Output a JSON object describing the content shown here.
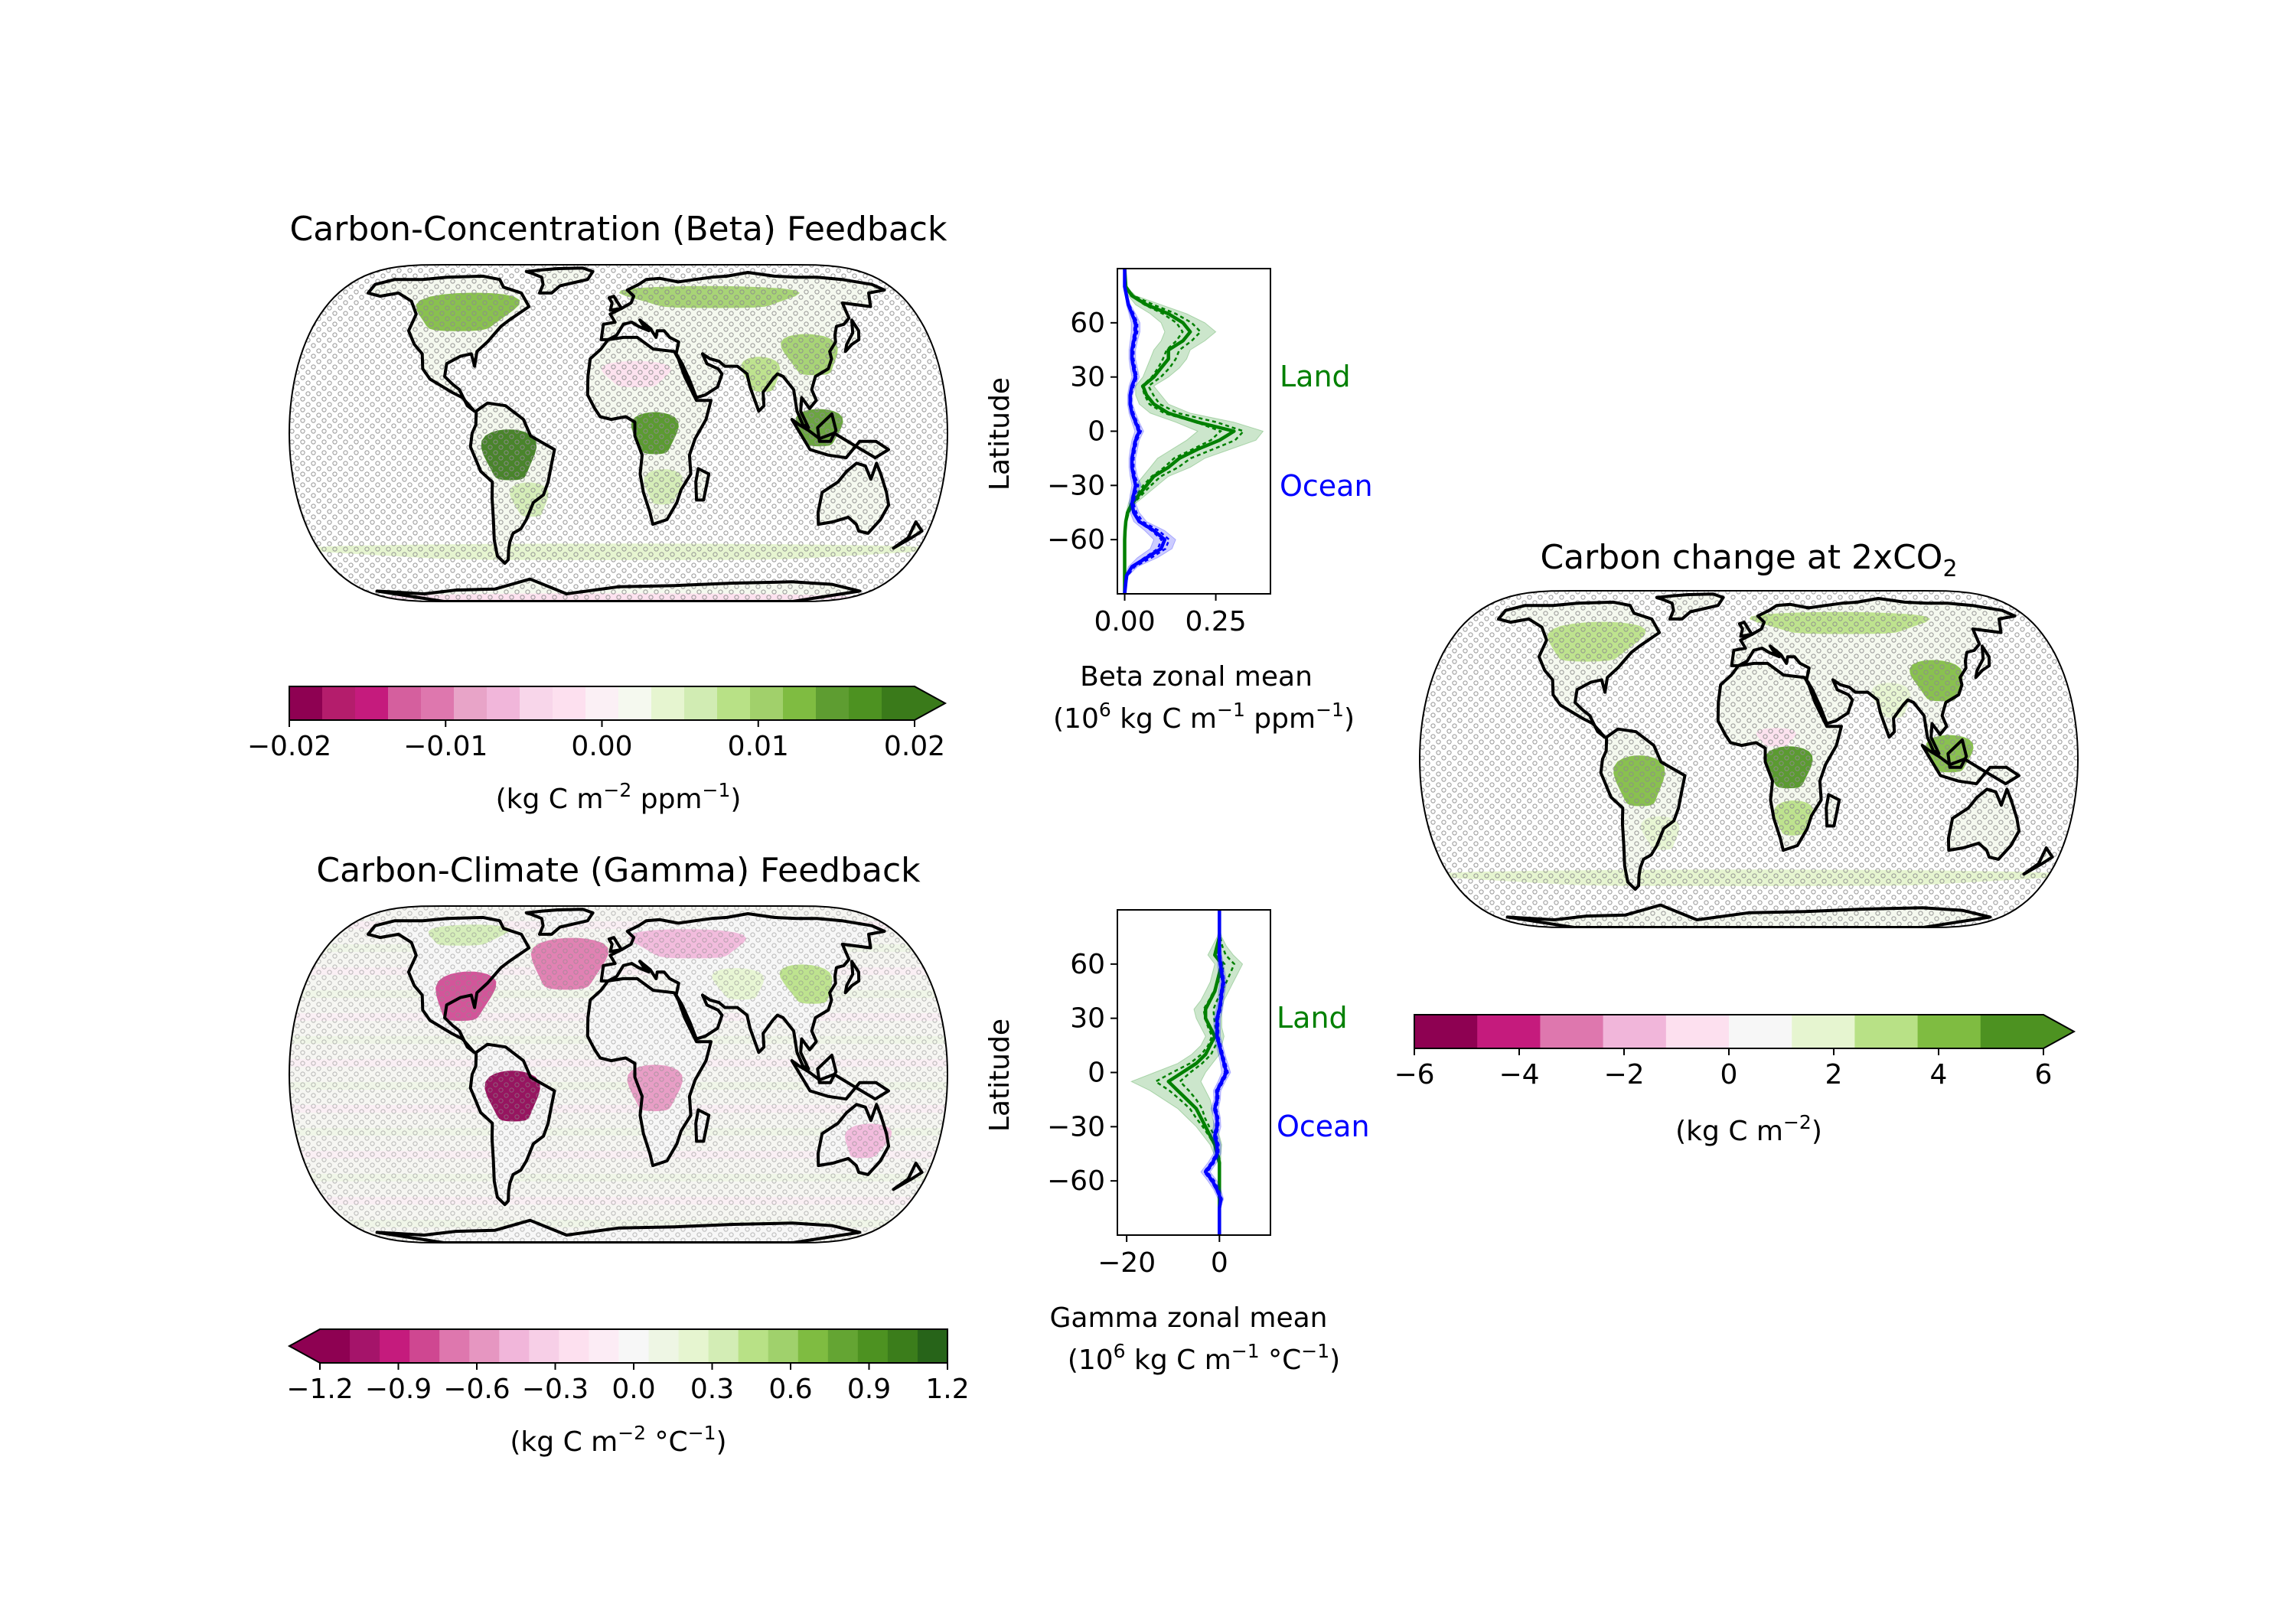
{
  "colors": {
    "land": "#008000",
    "ocean": "#0000ff",
    "stipple": "#8c8c8c",
    "cbar_beta": [
      "#8e0152",
      "#b41d6c",
      "#c51b7d",
      "#d55f9e",
      "#de77ae",
      "#e8a4c8",
      "#f1b6da",
      "#f8d6ea",
      "#fde0ef",
      "#fbf0f5",
      "#f5f9ef",
      "#e6f5d0",
      "#d1ecb3",
      "#b8e186",
      "#a1d06b",
      "#7fbc41",
      "#5e9d31",
      "#4d9221",
      "#3a7a1a"
    ],
    "cbar_gamma": [
      "#8e0152",
      "#a5146a",
      "#c51b7d",
      "#cf4791",
      "#de77ae",
      "#e696c1",
      "#f1b6da",
      "#f7cfe7",
      "#fde0ef",
      "#fcecf5",
      "#f7f7f7",
      "#eef6e4",
      "#e6f5d0",
      "#d3edb5",
      "#b8e186",
      "#a0d16c",
      "#7fbc41",
      "#64a533",
      "#4d9221",
      "#3b7d1b",
      "#276419"
    ],
    "cbar_carbon": [
      "#8e0152",
      "#c51b7d",
      "#de77ae",
      "#f1b6da",
      "#fde0ef",
      "#f7f7f7",
      "#e6f5d0",
      "#b8e186",
      "#7fbc41",
      "#4d9221"
    ]
  },
  "maps": [
    {
      "id": "beta",
      "title": "Carbon-Concentration (Beta) Feedback",
      "mode": "beta"
    },
    {
      "id": "gamma",
      "title": "Carbon-Climate (Gamma) Feedback",
      "mode": "gamma"
    },
    {
      "id": "carbon",
      "title": "Carbon change at 2xCO",
      "title_sub": "2",
      "mode": "carbon"
    }
  ],
  "colorbars": [
    {
      "id": "beta",
      "ticks": [
        "−0.02",
        "−0.01",
        "0.00",
        "0.01",
        "0.02"
      ],
      "extend": "max",
      "label_parts": [
        "(kg C m",
        "−2",
        " ppm",
        "−1",
        ")"
      ]
    },
    {
      "id": "gamma",
      "ticks": [
        "−1.2",
        "−0.9",
        "−0.6",
        "−0.3",
        "0.0",
        "0.3",
        "0.6",
        "0.9",
        "1.2"
      ],
      "extend": "min",
      "label_parts": [
        "(kg C m",
        "−2",
        " °C",
        "−1",
        ")"
      ]
    },
    {
      "id": "carbon",
      "ticks": [
        "−6",
        "−4",
        "−2",
        "0",
        "2",
        "4",
        "6"
      ],
      "extend": "max",
      "label_parts": [
        "(kg C m",
        "−2",
        ")"
      ]
    }
  ],
  "chart_data": [
    {
      "type": "line",
      "id": "beta_zonal",
      "ylabel": "Latitude",
      "xlabel_line1": "Beta zonal mean",
      "xlabel_line2_parts": [
        "(10",
        "6",
        " kg C m",
        "−1",
        " ppm",
        "−1",
        ")"
      ],
      "xlim": [
        -0.02,
        0.4
      ],
      "ylim": [
        -90,
        90
      ],
      "xticks": [
        0.0,
        0.25
      ],
      "xtick_labels": [
        "0.00",
        "0.25"
      ],
      "yticks": [
        60,
        30,
        0,
        -30,
        -60
      ],
      "ytick_labels": [
        "60",
        "30",
        "0",
        "−30",
        "−60"
      ],
      "annotations": {
        "land": "Land",
        "ocean": "Ocean"
      },
      "series": [
        {
          "key": "land",
          "lat": [
            -90,
            -80,
            -70,
            -60,
            -55,
            -50,
            -45,
            -40,
            -35,
            -30,
            -25,
            -20,
            -15,
            -10,
            -5,
            0,
            5,
            10,
            15,
            20,
            25,
            30,
            35,
            40,
            45,
            50,
            55,
            60,
            65,
            70,
            75,
            80,
            90
          ],
          "x": [
            0,
            0,
            0,
            0,
            0.001,
            0.003,
            0.008,
            0.02,
            0.04,
            0.06,
            0.08,
            0.12,
            0.15,
            0.2,
            0.26,
            0.3,
            0.2,
            0.12,
            0.08,
            0.06,
            0.05,
            0.08,
            0.1,
            0.12,
            0.12,
            0.16,
            0.18,
            0.16,
            0.12,
            0.06,
            0.02,
            0.003,
            0
          ],
          "lo": [
            0,
            0,
            0,
            0,
            0,
            0.001,
            0.004,
            0.01,
            0.02,
            0.03,
            0.05,
            0.07,
            0.09,
            0.13,
            0.17,
            0.2,
            0.14,
            0.07,
            0.04,
            0.03,
            0.03,
            0.05,
            0.06,
            0.07,
            0.08,
            0.1,
            0.11,
            0.1,
            0.07,
            0.03,
            0.01,
            0.001,
            0
          ],
          "hi": [
            0,
            0,
            0,
            0,
            0.002,
            0.006,
            0.014,
            0.03,
            0.06,
            0.09,
            0.12,
            0.18,
            0.22,
            0.29,
            0.36,
            0.38,
            0.3,
            0.18,
            0.12,
            0.1,
            0.08,
            0.12,
            0.15,
            0.17,
            0.18,
            0.22,
            0.25,
            0.22,
            0.17,
            0.1,
            0.03,
            0.005,
            0
          ]
        },
        {
          "key": "ocean",
          "lat": [
            -90,
            -80,
            -75,
            -70,
            -65,
            -60,
            -55,
            -50,
            -45,
            -40,
            -35,
            -30,
            -25,
            -20,
            -15,
            -10,
            -5,
            0,
            5,
            10,
            15,
            20,
            25,
            30,
            35,
            40,
            45,
            50,
            55,
            60,
            65,
            70,
            75,
            80,
            90
          ],
          "x": [
            0,
            0.005,
            0.02,
            0.06,
            0.1,
            0.11,
            0.08,
            0.04,
            0.025,
            0.02,
            0.025,
            0.03,
            0.025,
            0.02,
            0.02,
            0.025,
            0.03,
            0.04,
            0.03,
            0.02,
            0.015,
            0.015,
            0.02,
            0.03,
            0.025,
            0.02,
            0.02,
            0.025,
            0.03,
            0.03,
            0.02,
            0.01,
            0.005,
            0,
            0
          ],
          "lo": [
            0,
            0.002,
            0.01,
            0.035,
            0.07,
            0.08,
            0.055,
            0.025,
            0.015,
            0.012,
            0.015,
            0.02,
            0.015,
            0.012,
            0.012,
            0.015,
            0.02,
            0.028,
            0.02,
            0.012,
            0.008,
            0.008,
            0.012,
            0.02,
            0.015,
            0.012,
            0.012,
            0.015,
            0.018,
            0.018,
            0.012,
            0.005,
            0.002,
            0,
            0
          ],
          "hi": [
            0,
            0.01,
            0.035,
            0.09,
            0.13,
            0.14,
            0.11,
            0.06,
            0.04,
            0.03,
            0.035,
            0.045,
            0.035,
            0.03,
            0.03,
            0.035,
            0.04,
            0.052,
            0.04,
            0.03,
            0.022,
            0.022,
            0.03,
            0.04,
            0.035,
            0.03,
            0.03,
            0.035,
            0.042,
            0.042,
            0.03,
            0.016,
            0.008,
            0.002,
            0
          ]
        }
      ]
    },
    {
      "type": "line",
      "id": "gamma_zonal",
      "ylabel": "Latitude",
      "xlabel_line1": "Gamma zonal mean",
      "xlabel_line2_parts": [
        "(10",
        "6",
        " kg C m",
        "−1",
        " °C",
        "−1",
        ")"
      ],
      "xlim": [
        -22,
        11
      ],
      "ylim": [
        -90,
        90
      ],
      "xticks": [
        -20,
        0
      ],
      "xtick_labels": [
        "−20",
        "0"
      ],
      "yticks": [
        60,
        30,
        0,
        -30,
        -60
      ],
      "ytick_labels": [
        "60",
        "30",
        "0",
        "−30",
        "−60"
      ],
      "annotations": {
        "land": "Land",
        "ocean": "Ocean"
      },
      "series": [
        {
          "key": "land",
          "lat": [
            -90,
            -80,
            -70,
            -60,
            -50,
            -45,
            -40,
            -35,
            -30,
            -25,
            -20,
            -15,
            -10,
            -5,
            0,
            5,
            10,
            15,
            20,
            25,
            30,
            35,
            40,
            45,
            50,
            55,
            60,
            65,
            70,
            75,
            80,
            90
          ],
          "x": [
            0,
            0,
            0,
            0,
            0,
            -0.5,
            -1,
            -2,
            -3,
            -4,
            -5,
            -7,
            -9,
            -11,
            -8,
            -5,
            -3,
            -2,
            -1,
            -2,
            -3,
            -3,
            -2,
            -1,
            -0.5,
            0,
            0.5,
            -1,
            -0.5,
            0,
            0,
            0
          ],
          "lo": [
            0,
            0,
            0,
            0,
            -0.3,
            -1.2,
            -2,
            -3.5,
            -5,
            -7,
            -9,
            -12,
            -15,
            -19,
            -14,
            -9,
            -6,
            -4,
            -3,
            -4,
            -5,
            -5.5,
            -4,
            -3,
            -2,
            -1.5,
            -1,
            -2.5,
            -1.5,
            -0.5,
            0,
            0
          ],
          "hi": [
            0,
            0,
            0,
            0,
            0.3,
            0.3,
            0.5,
            0,
            -1,
            -1.5,
            -1.5,
            -2,
            -3,
            -4,
            -3,
            -1.5,
            0,
            0.5,
            1,
            0.5,
            0.5,
            0.5,
            1,
            2,
            3,
            4,
            5,
            3,
            1.5,
            0.5,
            0,
            0
          ]
        },
        {
          "key": "ocean",
          "lat": [
            -90,
            -75,
            -70,
            -65,
            -60,
            -55,
            -50,
            -45,
            -40,
            -35,
            -30,
            -25,
            -20,
            -15,
            -10,
            -5,
            0,
            5,
            10,
            15,
            20,
            25,
            30,
            35,
            40,
            45,
            50,
            55,
            60,
            65,
            70,
            75,
            80,
            90
          ],
          "x": [
            0,
            0,
            0.3,
            -0.5,
            -1.5,
            -3,
            -1.5,
            -0.5,
            -0.5,
            -1,
            -0.5,
            -0.5,
            -1,
            -0.5,
            -0.5,
            0.5,
            1.5,
            1,
            0.5,
            0,
            -0.5,
            -0.5,
            -0.5,
            0,
            0.3,
            0.5,
            0.8,
            0.5,
            0.2,
            0,
            0,
            0,
            0,
            0
          ],
          "lo": [
            0,
            0,
            -0.3,
            -1.2,
            -2.5,
            -4,
            -2.5,
            -1.3,
            -1.2,
            -1.8,
            -1.3,
            -1.2,
            -1.8,
            -1.2,
            -1.3,
            -0.3,
            0.5,
            0.2,
            -0.2,
            -0.7,
            -1.2,
            -1.2,
            -1.2,
            -0.7,
            -0.3,
            -0.2,
            0.1,
            -0.2,
            -0.4,
            -0.5,
            -0.3,
            -0.2,
            0,
            0
          ],
          "hi": [
            0,
            0.2,
            0.9,
            0.3,
            -0.5,
            -2,
            -0.6,
            0.3,
            0.3,
            -0.2,
            0.3,
            0.2,
            -0.2,
            0.2,
            0.3,
            1.3,
            2.4,
            1.8,
            1.2,
            0.7,
            0.2,
            0.2,
            0.2,
            0.7,
            0.9,
            1.2,
            1.5,
            1.2,
            0.8,
            0.5,
            0.3,
            0.2,
            0,
            0
          ]
        }
      ]
    }
  ]
}
